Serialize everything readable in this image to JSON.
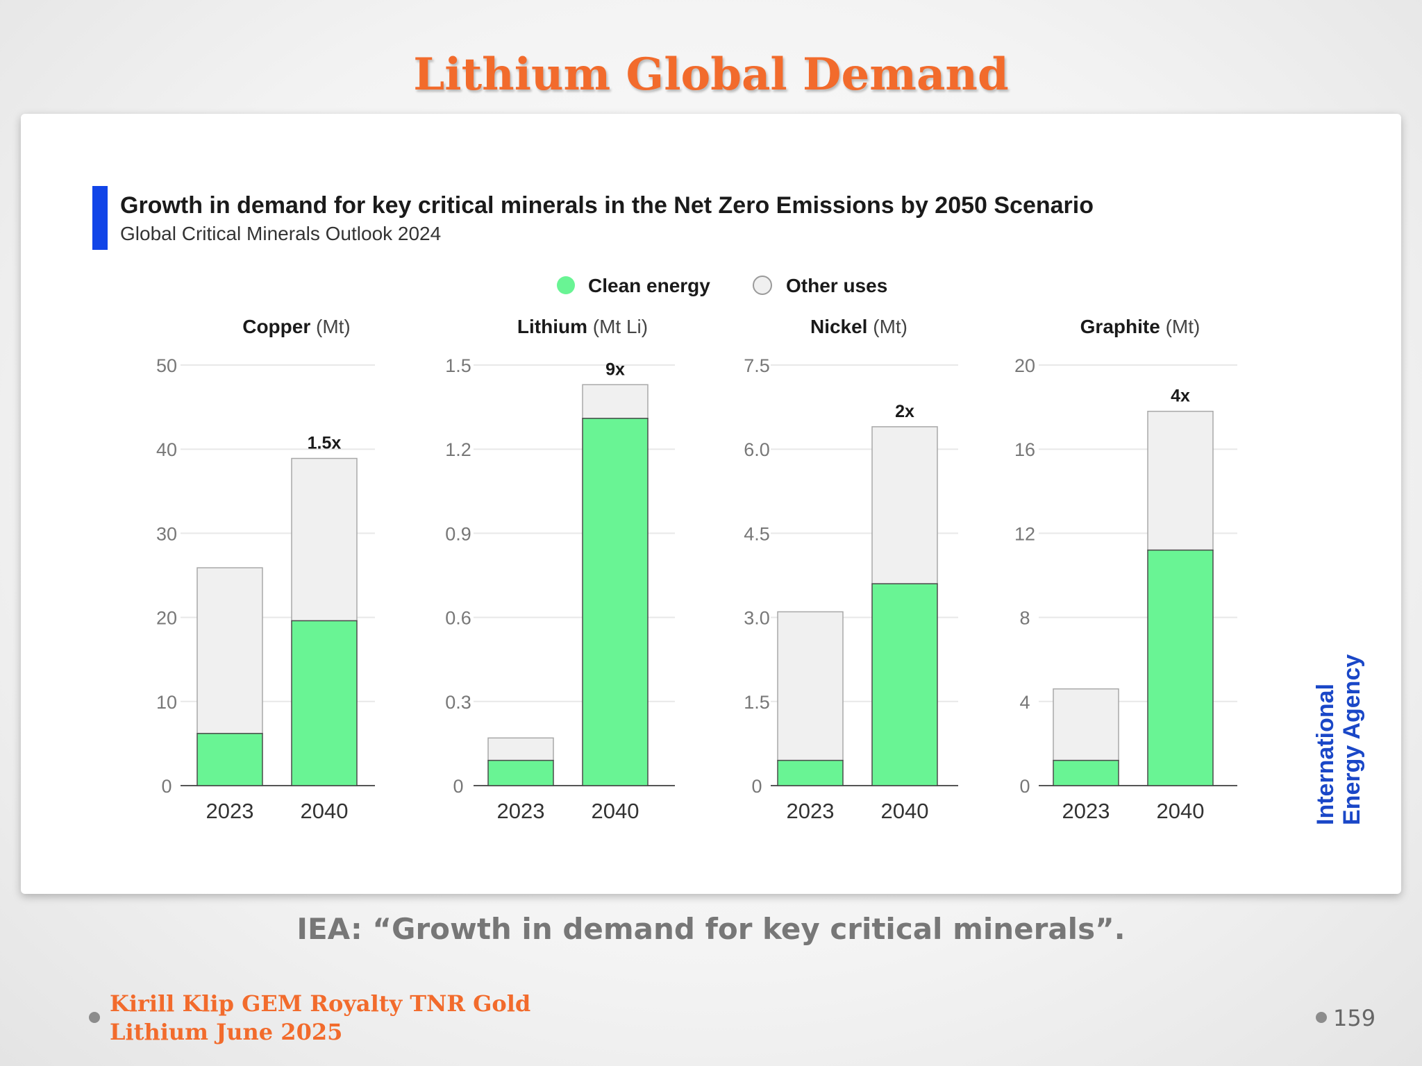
{
  "slide": {
    "title": "Lithium Global Demand",
    "caption": "IEA: “Growth in demand for key critical minerals”.",
    "footer_line1": "Kirill Klip GEM Royalty TNR Gold",
    "footer_line2": "Lithium June 2025",
    "page_number": "159"
  },
  "colors": {
    "title": "#f26b2c",
    "clean_energy": "#69f494",
    "other_uses": "#f0f0f0",
    "accent_bar": "#1145e8",
    "iea_logo": "#1a47c7"
  },
  "chart_data": {
    "type": "bar",
    "stacked": true,
    "title": "Growth in demand for key critical minerals in the Net Zero Emissions by 2050 Scenario",
    "subtitle": "Global Critical Minerals Outlook 2024",
    "legend": {
      "placement": "top-center",
      "entries": [
        "Clean energy",
        "Other uses"
      ]
    },
    "source_logo": [
      "International",
      "Energy Agency"
    ],
    "panels": [
      {
        "name": "Copper",
        "unit": "(Mt)",
        "ylim": [
          0,
          50
        ],
        "yticks": [
          "0",
          "10",
          "20",
          "30",
          "40",
          "50"
        ],
        "categories": [
          "2023",
          "2040"
        ],
        "series": [
          {
            "name": "Clean energy",
            "values": [
              6.2,
              19.6
            ]
          },
          {
            "name": "Other uses",
            "values": [
              19.7,
              19.3
            ]
          }
        ],
        "growth_label": "1.5x"
      },
      {
        "name": "Lithium",
        "unit": "(Mt Li)",
        "ylim": [
          0,
          1.5
        ],
        "yticks": [
          "0",
          "0.3",
          "0.6",
          "0.9",
          "1.2",
          "1.5"
        ],
        "categories": [
          "2023",
          "2040"
        ],
        "series": [
          {
            "name": "Clean energy",
            "values": [
              0.09,
              1.31
            ]
          },
          {
            "name": "Other uses",
            "values": [
              0.08,
              0.12
            ]
          }
        ],
        "growth_label": "9x"
      },
      {
        "name": "Nickel",
        "unit": "(Mt)",
        "ylim": [
          0,
          7.5
        ],
        "yticks": [
          "0",
          "1.5",
          "3.0",
          "4.5",
          "6.0",
          "7.5"
        ],
        "categories": [
          "2023",
          "2040"
        ],
        "series": [
          {
            "name": "Clean energy",
            "values": [
              0.45,
              3.6
            ]
          },
          {
            "name": "Other uses",
            "values": [
              2.65,
              2.8
            ]
          }
        ],
        "growth_label": "2x"
      },
      {
        "name": "Graphite",
        "unit": "(Mt)",
        "ylim": [
          0,
          20
        ],
        "yticks": [
          "0",
          "4",
          "8",
          "12",
          "16",
          "20"
        ],
        "categories": [
          "2023",
          "2040"
        ],
        "series": [
          {
            "name": "Clean energy",
            "values": [
              1.2,
              11.2
            ]
          },
          {
            "name": "Other uses",
            "values": [
              3.4,
              6.6
            ]
          }
        ],
        "growth_label": "4x"
      }
    ]
  }
}
